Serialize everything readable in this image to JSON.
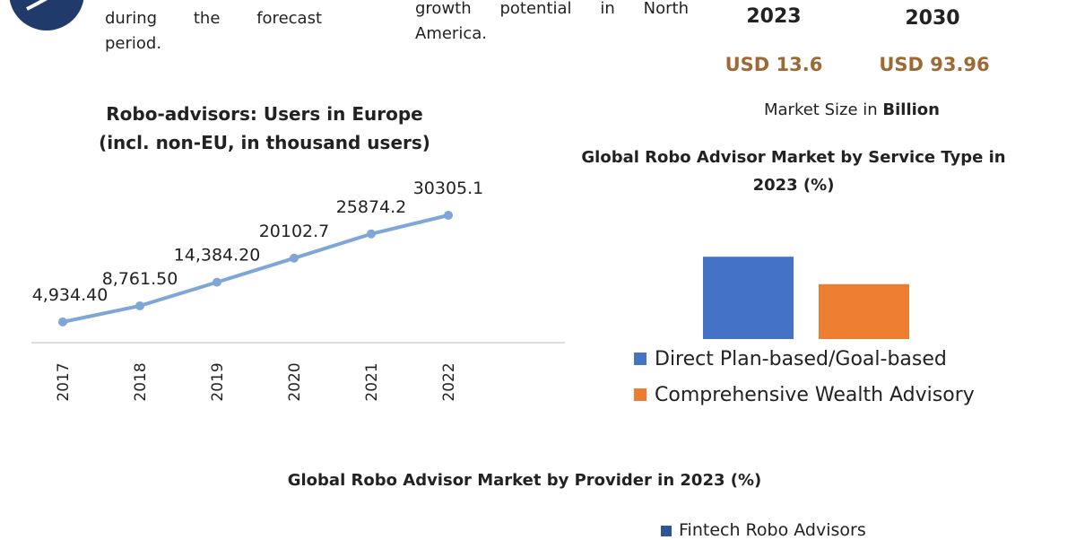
{
  "header": {
    "left_text": [
      "during the forecast",
      "period."
    ],
    "middle_text": [
      "growth potential in North",
      "America."
    ]
  },
  "market_size": {
    "years": [
      "2023",
      "2030"
    ],
    "values": [
      "USD 13.6",
      "USD 93.96"
    ],
    "caption": "Market Size in",
    "caption_unit": "Billion"
  },
  "chart_data": [
    {
      "type": "line",
      "title": "Robo-advisors: Users in Europe",
      "subtitle": "(incl. non-EU, in thousand users)",
      "categories": [
        "2017",
        "2018",
        "2019",
        "2020",
        "2021",
        "2022"
      ],
      "values": [
        4934.4,
        8761.5,
        14384.2,
        20102.7,
        25874.2,
        30305.1
      ],
      "value_labels": [
        "4,934.40",
        "8,761.50",
        "14,384.20",
        "20102.7",
        "25874.2",
        "30305.1"
      ],
      "color": "#7ea6d6",
      "ylim": [
        0,
        35000
      ]
    },
    {
      "type": "bar",
      "title": "Global Robo Advisor Market by Service Type in 2023 (%)",
      "series": [
        {
          "name": "Direct Plan-based/Goal-based",
          "color": "#4472c4",
          "values": [
            60
          ]
        },
        {
          "name": "Comprehensive Wealth Advisory",
          "color": "#ed7d31",
          "values": [
            40
          ]
        }
      ],
      "ylim": [
        0,
        100
      ]
    }
  ],
  "provider_chart": {
    "title": "Global Robo Advisor Market by Provider in 2023 (%)",
    "legend": [
      "Fintech Robo Advisors"
    ]
  }
}
